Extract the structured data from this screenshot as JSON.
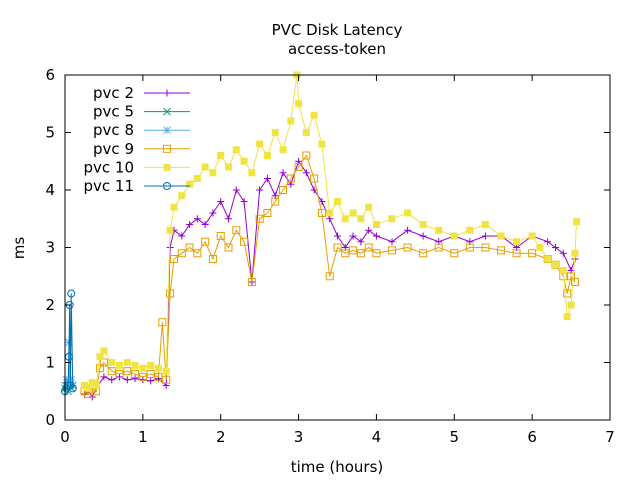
{
  "chart_data": {
    "type": "line",
    "title": "PVC Disk Latency",
    "subtitle": "access-token",
    "xlabel": "time (hours)",
    "ylabel": "ms",
    "xlim": [
      0,
      7
    ],
    "ylim": [
      0,
      6
    ],
    "xticks": [
      "0",
      "1",
      "2",
      "3",
      "4",
      "5",
      "6",
      "7"
    ],
    "yticks": [
      "0",
      "1",
      "2",
      "3",
      "4",
      "5",
      "6"
    ],
    "grid": false,
    "legend_position": "top-left",
    "series": [
      {
        "name": "pvc 2",
        "color": "#9400d3",
        "marker": "plus",
        "points": [
          [
            0.25,
            0.45
          ],
          [
            0.3,
            0.5
          ],
          [
            0.35,
            0.4
          ],
          [
            0.4,
            0.55
          ],
          [
            0.5,
            0.75
          ],
          [
            0.6,
            0.7
          ],
          [
            0.7,
            0.75
          ],
          [
            0.8,
            0.7
          ],
          [
            0.9,
            0.72
          ],
          [
            1.0,
            0.7
          ],
          [
            1.1,
            0.68
          ],
          [
            1.2,
            0.72
          ],
          [
            1.3,
            0.6
          ],
          [
            1.35,
            3.0
          ],
          [
            1.4,
            3.3
          ],
          [
            1.5,
            3.2
          ],
          [
            1.6,
            3.4
          ],
          [
            1.7,
            3.5
          ],
          [
            1.8,
            3.4
          ],
          [
            1.9,
            3.6
          ],
          [
            2.0,
            3.8
          ],
          [
            2.1,
            3.5
          ],
          [
            2.2,
            4.0
          ],
          [
            2.3,
            3.8
          ],
          [
            2.4,
            2.4
          ],
          [
            2.5,
            4.0
          ],
          [
            2.6,
            4.2
          ],
          [
            2.7,
            3.9
          ],
          [
            2.8,
            4.3
          ],
          [
            2.9,
            4.1
          ],
          [
            3.0,
            4.5
          ],
          [
            3.1,
            4.3
          ],
          [
            3.2,
            4.0
          ],
          [
            3.3,
            3.8
          ],
          [
            3.4,
            3.5
          ],
          [
            3.5,
            3.2
          ],
          [
            3.6,
            3.0
          ],
          [
            3.7,
            3.2
          ],
          [
            3.8,
            3.1
          ],
          [
            3.9,
            3.3
          ],
          [
            4.0,
            3.2
          ],
          [
            4.2,
            3.1
          ],
          [
            4.4,
            3.3
          ],
          [
            4.6,
            3.2
          ],
          [
            4.8,
            3.1
          ],
          [
            5.0,
            3.2
          ],
          [
            5.2,
            3.1
          ],
          [
            5.4,
            3.2
          ],
          [
            5.6,
            3.2
          ],
          [
            5.8,
            3.0
          ],
          [
            6.0,
            3.2
          ],
          [
            6.2,
            3.1
          ],
          [
            6.3,
            3.0
          ],
          [
            6.4,
            2.9
          ],
          [
            6.5,
            2.6
          ],
          [
            6.55,
            2.8
          ]
        ]
      },
      {
        "name": "pvc 5",
        "color": "#009e73",
        "marker": "cross",
        "points": [
          [
            0.0,
            0.55
          ],
          [
            0.02,
            0.6
          ],
          [
            0.04,
            0.5
          ],
          [
            0.06,
            0.65
          ],
          [
            0.08,
            0.55
          ],
          [
            0.1,
            0.6
          ]
        ]
      },
      {
        "name": "pvc 8",
        "color": "#56b4e9",
        "marker": "star",
        "points": [
          [
            0.0,
            0.6
          ],
          [
            0.02,
            0.7
          ],
          [
            0.04,
            0.55
          ],
          [
            0.05,
            1.35
          ],
          [
            0.06,
            0.65
          ],
          [
            0.08,
            0.7
          ],
          [
            0.1,
            0.6
          ]
        ]
      },
      {
        "name": "pvc 9",
        "color": "#e69f00",
        "marker": "square-open",
        "points": [
          [
            0.25,
            0.5
          ],
          [
            0.3,
            0.45
          ],
          [
            0.35,
            0.55
          ],
          [
            0.4,
            0.5
          ],
          [
            0.45,
            0.9
          ],
          [
            0.5,
            1.0
          ],
          [
            0.6,
            0.85
          ],
          [
            0.7,
            0.8
          ],
          [
            0.8,
            0.85
          ],
          [
            0.9,
            0.8
          ],
          [
            1.0,
            0.75
          ],
          [
            1.1,
            0.8
          ],
          [
            1.2,
            0.75
          ],
          [
            1.25,
            1.7
          ],
          [
            1.3,
            0.7
          ],
          [
            1.35,
            2.2
          ],
          [
            1.4,
            2.8
          ],
          [
            1.5,
            2.9
          ],
          [
            1.6,
            3.0
          ],
          [
            1.7,
            2.9
          ],
          [
            1.8,
            3.1
          ],
          [
            1.9,
            2.8
          ],
          [
            2.0,
            3.2
          ],
          [
            2.1,
            3.0
          ],
          [
            2.2,
            3.3
          ],
          [
            2.3,
            3.1
          ],
          [
            2.4,
            2.4
          ],
          [
            2.5,
            3.5
          ],
          [
            2.6,
            3.6
          ],
          [
            2.7,
            3.8
          ],
          [
            2.8,
            4.0
          ],
          [
            2.9,
            4.2
          ],
          [
            3.0,
            4.4
          ],
          [
            3.1,
            4.6
          ],
          [
            3.2,
            4.2
          ],
          [
            3.3,
            3.6
          ],
          [
            3.4,
            2.5
          ],
          [
            3.5,
            3.0
          ],
          [
            3.6,
            2.9
          ],
          [
            3.7,
            2.95
          ],
          [
            3.8,
            2.9
          ],
          [
            3.9,
            3.0
          ],
          [
            4.0,
            2.9
          ],
          [
            4.2,
            2.95
          ],
          [
            4.4,
            3.0
          ],
          [
            4.6,
            2.9
          ],
          [
            4.8,
            3.0
          ],
          [
            5.0,
            2.9
          ],
          [
            5.2,
            3.0
          ],
          [
            5.4,
            3.0
          ],
          [
            5.6,
            2.95
          ],
          [
            5.8,
            2.9
          ],
          [
            6.0,
            2.9
          ],
          [
            6.2,
            2.8
          ],
          [
            6.3,
            2.7
          ],
          [
            6.4,
            2.5
          ],
          [
            6.45,
            2.2
          ],
          [
            6.5,
            2.5
          ],
          [
            6.55,
            2.4
          ]
        ]
      },
      {
        "name": "pvc 10",
        "color": "#f0e442",
        "marker": "square-filled",
        "points": [
          [
            0.25,
            0.6
          ],
          [
            0.3,
            0.55
          ],
          [
            0.35,
            0.65
          ],
          [
            0.4,
            0.6
          ],
          [
            0.45,
            1.1
          ],
          [
            0.5,
            1.2
          ],
          [
            0.6,
            1.0
          ],
          [
            0.7,
            0.95
          ],
          [
            0.8,
            1.0
          ],
          [
            0.9,
            0.95
          ],
          [
            1.0,
            0.9
          ],
          [
            1.1,
            0.95
          ],
          [
            1.2,
            0.9
          ],
          [
            1.3,
            0.85
          ],
          [
            1.35,
            3.3
          ],
          [
            1.4,
            3.7
          ],
          [
            1.5,
            3.9
          ],
          [
            1.6,
            4.1
          ],
          [
            1.7,
            4.2
          ],
          [
            1.8,
            4.4
          ],
          [
            1.9,
            4.3
          ],
          [
            2.0,
            4.6
          ],
          [
            2.1,
            4.4
          ],
          [
            2.2,
            4.7
          ],
          [
            2.3,
            4.5
          ],
          [
            2.4,
            4.3
          ],
          [
            2.5,
            4.8
          ],
          [
            2.6,
            4.6
          ],
          [
            2.7,
            5.0
          ],
          [
            2.8,
            4.7
          ],
          [
            2.9,
            5.2
          ],
          [
            2.98,
            6.0
          ],
          [
            3.0,
            5.5
          ],
          [
            3.1,
            5.0
          ],
          [
            3.2,
            5.3
          ],
          [
            3.3,
            4.8
          ],
          [
            3.4,
            3.6
          ],
          [
            3.5,
            3.8
          ],
          [
            3.6,
            3.5
          ],
          [
            3.7,
            3.6
          ],
          [
            3.8,
            3.5
          ],
          [
            3.9,
            3.7
          ],
          [
            4.0,
            3.4
          ],
          [
            4.2,
            3.5
          ],
          [
            4.4,
            3.6
          ],
          [
            4.6,
            3.4
          ],
          [
            4.8,
            3.3
          ],
          [
            5.0,
            3.2
          ],
          [
            5.2,
            3.3
          ],
          [
            5.4,
            3.4
          ],
          [
            5.6,
            3.2
          ],
          [
            5.8,
            3.1
          ],
          [
            6.0,
            3.2
          ],
          [
            6.1,
            3.0
          ],
          [
            6.2,
            2.8
          ],
          [
            6.3,
            2.7
          ],
          [
            6.4,
            2.6
          ],
          [
            6.45,
            1.8
          ],
          [
            6.5,
            2.0
          ],
          [
            6.55,
            2.9
          ],
          [
            6.57,
            3.45
          ]
        ]
      },
      {
        "name": "pvc 11",
        "color": "#0072b2",
        "marker": "circle-open",
        "points": [
          [
            0.0,
            0.5
          ],
          [
            0.02,
            0.55
          ],
          [
            0.04,
            0.6
          ],
          [
            0.05,
            1.1
          ],
          [
            0.06,
            2.0
          ],
          [
            0.07,
            0.6
          ],
          [
            0.08,
            2.2
          ],
          [
            0.1,
            0.55
          ]
        ]
      }
    ]
  }
}
